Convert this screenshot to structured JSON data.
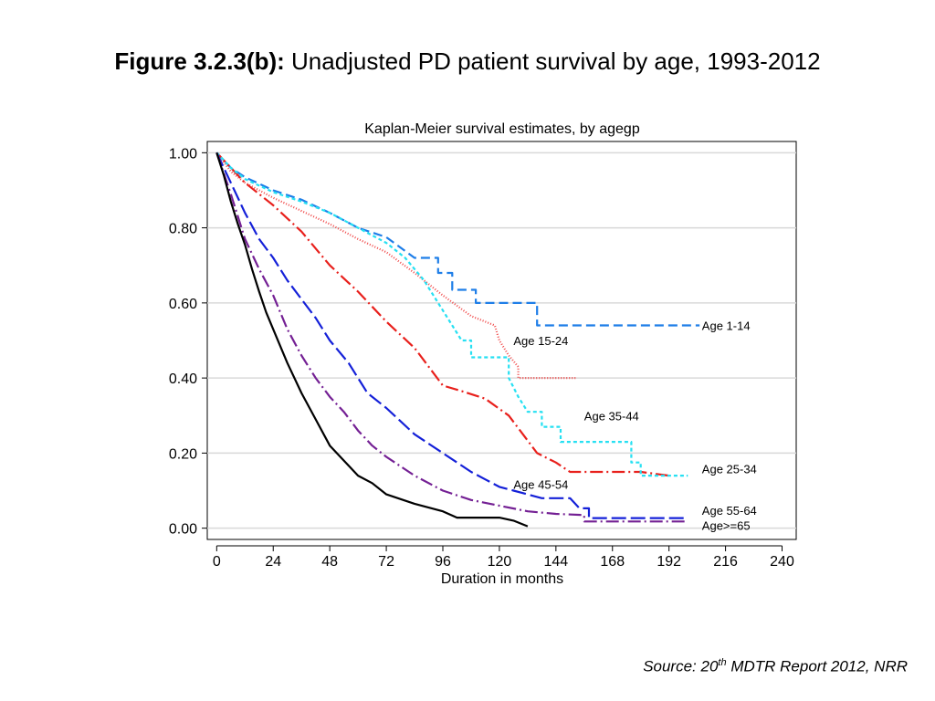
{
  "figure": {
    "label": "Figure 3.2.3(b):",
    "caption": "Unadjusted PD patient survival by age, 1993-2012"
  },
  "source": {
    "prefix": "Source: 20",
    "sup": "th",
    "rest": " MDTR Report 2012, NRR"
  },
  "chart_data": {
    "type": "line",
    "title": "Kaplan-Meier survival estimates, by agegp",
    "xlabel": "Duration in months",
    "ylabel": "",
    "xlim": [
      -4,
      246
    ],
    "ylim": [
      -0.03,
      1.03
    ],
    "xticks": [
      0,
      24,
      48,
      72,
      96,
      120,
      144,
      168,
      192,
      216,
      240
    ],
    "yticks": [
      0.0,
      0.2,
      0.4,
      0.6,
      0.8,
      1.0
    ],
    "ytick_labels": [
      "0.00",
      "0.20",
      "0.40",
      "0.60",
      "0.80",
      "1.00"
    ],
    "grid": "horizontal",
    "series": [
      {
        "name": "Age 1-14",
        "color": "#1e7ee8",
        "dash": "10,5",
        "points": [
          [
            0,
            1.0
          ],
          [
            6,
            0.96
          ],
          [
            12,
            0.935
          ],
          [
            24,
            0.9
          ],
          [
            36,
            0.875
          ],
          [
            48,
            0.84
          ],
          [
            60,
            0.8
          ],
          [
            72,
            0.775
          ],
          [
            84,
            0.72
          ],
          [
            94,
            0.72
          ],
          [
            94,
            0.68
          ],
          [
            100,
            0.68
          ],
          [
            100,
            0.635
          ],
          [
            110,
            0.635
          ],
          [
            110,
            0.6
          ],
          [
            136,
            0.6
          ],
          [
            136,
            0.54
          ],
          [
            205,
            0.54
          ]
        ]
      },
      {
        "name": "Age 15-24",
        "color": "#f04848",
        "dash": "1,2",
        "points": [
          [
            0,
            1.0
          ],
          [
            6,
            0.95
          ],
          [
            12,
            0.92
          ],
          [
            24,
            0.88
          ],
          [
            36,
            0.845
          ],
          [
            48,
            0.81
          ],
          [
            60,
            0.77
          ],
          [
            72,
            0.735
          ],
          [
            84,
            0.68
          ],
          [
            96,
            0.62
          ],
          [
            108,
            0.565
          ],
          [
            118,
            0.54
          ],
          [
            120,
            0.5
          ],
          [
            124,
            0.46
          ],
          [
            128,
            0.43
          ],
          [
            128,
            0.4
          ],
          [
            153,
            0.4
          ]
        ]
      },
      {
        "name": "Age 25-34",
        "color": "#e8201c",
        "dash": "14,4,2,4",
        "points": [
          [
            0,
            1.0
          ],
          [
            6,
            0.96
          ],
          [
            12,
            0.92
          ],
          [
            24,
            0.86
          ],
          [
            36,
            0.79
          ],
          [
            48,
            0.7
          ],
          [
            60,
            0.63
          ],
          [
            72,
            0.55
          ],
          [
            84,
            0.48
          ],
          [
            96,
            0.38
          ],
          [
            104,
            0.365
          ],
          [
            114,
            0.345
          ],
          [
            124,
            0.3
          ],
          [
            130,
            0.25
          ],
          [
            136,
            0.2
          ],
          [
            144,
            0.175
          ],
          [
            150,
            0.15
          ],
          [
            168,
            0.15
          ],
          [
            180,
            0.15
          ],
          [
            192,
            0.14
          ]
        ]
      },
      {
        "name": "Age 35-44",
        "color": "#26e0f2",
        "dash": "4,3",
        "points": [
          [
            0,
            1.0
          ],
          [
            6,
            0.96
          ],
          [
            12,
            0.93
          ],
          [
            24,
            0.895
          ],
          [
            36,
            0.87
          ],
          [
            48,
            0.84
          ],
          [
            60,
            0.8
          ],
          [
            72,
            0.76
          ],
          [
            80,
            0.72
          ],
          [
            88,
            0.66
          ],
          [
            96,
            0.58
          ],
          [
            104,
            0.5
          ],
          [
            108,
            0.5
          ],
          [
            108,
            0.455
          ],
          [
            124,
            0.455
          ],
          [
            124,
            0.4
          ],
          [
            128,
            0.35
          ],
          [
            132,
            0.31
          ],
          [
            138,
            0.31
          ],
          [
            138,
            0.27
          ],
          [
            146,
            0.27
          ],
          [
            146,
            0.23
          ],
          [
            176,
            0.23
          ],
          [
            176,
            0.175
          ],
          [
            180,
            0.175
          ],
          [
            180,
            0.14
          ],
          [
            200,
            0.14
          ]
        ]
      },
      {
        "name": "Age 45-54",
        "color": "#1420d8",
        "dash": "16,5",
        "points": [
          [
            0,
            1.0
          ],
          [
            6,
            0.92
          ],
          [
            12,
            0.84
          ],
          [
            18,
            0.77
          ],
          [
            24,
            0.72
          ],
          [
            30,
            0.66
          ],
          [
            36,
            0.61
          ],
          [
            42,
            0.56
          ],
          [
            48,
            0.5
          ],
          [
            56,
            0.44
          ],
          [
            64,
            0.36
          ],
          [
            72,
            0.32
          ],
          [
            84,
            0.25
          ],
          [
            96,
            0.2
          ],
          [
            108,
            0.15
          ],
          [
            114,
            0.13
          ],
          [
            120,
            0.11
          ],
          [
            126,
            0.1
          ],
          [
            138,
            0.08
          ],
          [
            150,
            0.08
          ],
          [
            154,
            0.053
          ],
          [
            158,
            0.053
          ],
          [
            158,
            0.027
          ],
          [
            200,
            0.027
          ]
        ]
      },
      {
        "name": "Age 55-64",
        "color": "#742094",
        "dash": "14,4,2,4",
        "points": [
          [
            0,
            1.0
          ],
          [
            6,
            0.89
          ],
          [
            12,
            0.77
          ],
          [
            18,
            0.69
          ],
          [
            24,
            0.62
          ],
          [
            30,
            0.53
          ],
          [
            36,
            0.46
          ],
          [
            42,
            0.4
          ],
          [
            48,
            0.35
          ],
          [
            54,
            0.31
          ],
          [
            60,
            0.26
          ],
          [
            66,
            0.22
          ],
          [
            72,
            0.19
          ],
          [
            84,
            0.14
          ],
          [
            96,
            0.1
          ],
          [
            108,
            0.075
          ],
          [
            120,
            0.06
          ],
          [
            132,
            0.045
          ],
          [
            144,
            0.038
          ],
          [
            156,
            0.035
          ],
          [
            156,
            0.018
          ],
          [
            200,
            0.018
          ]
        ]
      },
      {
        "name": "Age>=65",
        "color": "#000000",
        "dash": "",
        "points": [
          [
            0,
            1.0
          ],
          [
            3,
            0.94
          ],
          [
            6,
            0.87
          ],
          [
            9,
            0.81
          ],
          [
            12,
            0.755
          ],
          [
            15,
            0.69
          ],
          [
            18,
            0.63
          ],
          [
            21,
            0.575
          ],
          [
            24,
            0.53
          ],
          [
            30,
            0.44
          ],
          [
            36,
            0.36
          ],
          [
            42,
            0.29
          ],
          [
            48,
            0.22
          ],
          [
            54,
            0.18
          ],
          [
            60,
            0.14
          ],
          [
            66,
            0.12
          ],
          [
            72,
            0.09
          ],
          [
            84,
            0.065
          ],
          [
            96,
            0.045
          ],
          [
            102,
            0.028
          ],
          [
            120,
            0.028
          ],
          [
            126,
            0.02
          ],
          [
            132,
            0.005
          ]
        ]
      }
    ],
    "annotations": [
      {
        "text": "Age 1-14",
        "x": 206,
        "y": 0.54
      },
      {
        "text": "Age 15-24",
        "x": 126,
        "y": 0.5
      },
      {
        "text": "Age 35-44",
        "x": 156,
        "y": 0.3
      },
      {
        "text": "Age 25-34",
        "x": 206,
        "y": 0.158
      },
      {
        "text": "Age 45-54",
        "x": 126,
        "y": 0.117
      },
      {
        "text": "Age 55-64",
        "x": 206,
        "y": 0.048
      },
      {
        "text": "Age>=65",
        "x": 206,
        "y": 0.008
      }
    ]
  }
}
